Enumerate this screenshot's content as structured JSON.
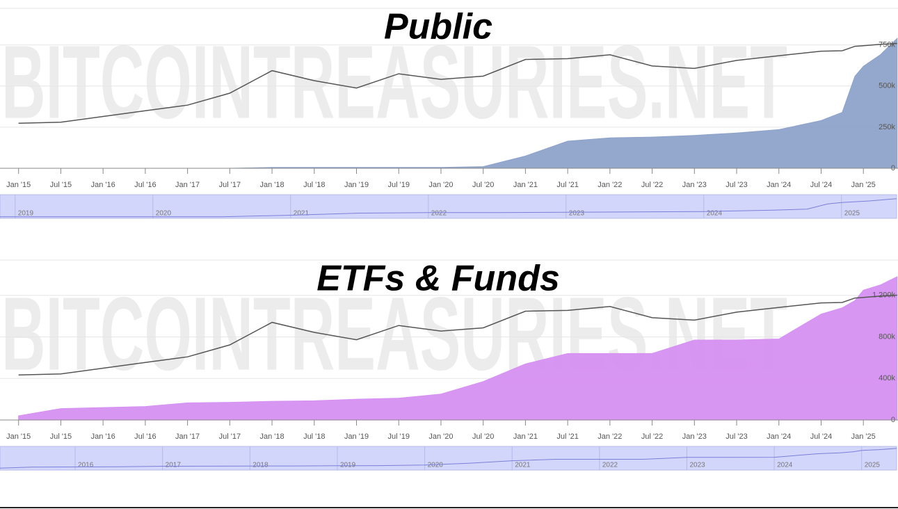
{
  "chart_data": [
    {
      "type": "area",
      "title": "Public",
      "watermark": "BITCOINTREASURIES.NET",
      "grid": true,
      "x": [
        2015,
        2015.5,
        2016,
        2016.5,
        2017,
        2017.5,
        2018,
        2018.5,
        2019,
        2019.5,
        2020,
        2020.5,
        2021,
        2021.5,
        2022,
        2022.5,
        2023,
        2023.5,
        2024,
        2024.5,
        2024.75,
        2024.9,
        2025,
        2025.2,
        2025.4
      ],
      "xlim": [
        2014.78,
        2025.41
      ],
      "xticks": [
        {
          "value": 2015,
          "label": "Jan '15"
        },
        {
          "value": 2015.5,
          "label": "Jul '15"
        },
        {
          "value": 2016,
          "label": "Jan '16"
        },
        {
          "value": 2016.5,
          "label": "Jul '16"
        },
        {
          "value": 2017,
          "label": "Jan '17"
        },
        {
          "value": 2017.5,
          "label": "Jul '17"
        },
        {
          "value": 2018,
          "label": "Jan '18"
        },
        {
          "value": 2018.5,
          "label": "Jul '18"
        },
        {
          "value": 2019,
          "label": "Jan '19"
        },
        {
          "value": 2019.5,
          "label": "Jul '19"
        },
        {
          "value": 2020,
          "label": "Jan '20"
        },
        {
          "value": 2020.5,
          "label": "Jul '20"
        },
        {
          "value": 2021,
          "label": "Jan '21"
        },
        {
          "value": 2021.5,
          "label": "Jul '21"
        },
        {
          "value": 2022,
          "label": "Jan '22"
        },
        {
          "value": 2022.5,
          "label": "Jul '22"
        },
        {
          "value": 2023,
          "label": "Jan '23"
        },
        {
          "value": 2023.5,
          "label": "Jul '23"
        },
        {
          "value": 2024,
          "label": "Jan '24"
        },
        {
          "value": 2024.5,
          "label": "Jul '24"
        },
        {
          "value": 2025,
          "label": "Jan '25"
        }
      ],
      "ylim": [
        0,
        960000
      ],
      "yticks": [
        0,
        {
          "value": 250000,
          "label": "250k"
        },
        {
          "value": 500000,
          "label": "500k"
        },
        {
          "value": 750000,
          "label": "750k"
        }
      ],
      "y2lim": [
        8,
        1400000
      ],
      "y2log": true,
      "series": [
        {
          "color": "#8ea2ca",
          "values": [
            0,
            0,
            0,
            0,
            0,
            0,
            5000,
            5000,
            5000,
            5000,
            5000,
            10000,
            75000,
            165000,
            185000,
            190000,
            200000,
            215000,
            235000,
            290000,
            340000,
            560000,
            620000,
            690000,
            790000
          ]
        },
        {
          "color": "#555555",
          "axis": "y2",
          "values": [
            250,
            270,
            420,
            650,
            1000,
            2500,
            14000,
            6500,
            3700,
            11000,
            7200,
            9200,
            33000,
            35000,
            47000,
            20000,
            16600,
            30500,
            44000,
            62000,
            64000,
            90000,
            94000,
            105000,
            112000
          ]
        }
      ],
      "navigator": {
        "xlim": [
          2018.89,
          2025.4
        ],
        "xticks": [
          2019,
          2020,
          2021,
          2022,
          2023,
          2024,
          2025
        ]
      }
    },
    {
      "type": "area",
      "title": "ETFs & Funds",
      "watermark": "BITCOINTREASURIES.NET",
      "grid": true,
      "x": [
        2015,
        2015.5,
        2016,
        2016.5,
        2017,
        2017.5,
        2018,
        2018.5,
        2019,
        2019.5,
        2020,
        2020.5,
        2021,
        2021.5,
        2022,
        2022.5,
        2023,
        2023.5,
        2024,
        2024.5,
        2024.75,
        2024.9,
        2025,
        2025.2,
        2025.4
      ],
      "xlim": [
        2014.78,
        2025.41
      ],
      "xticks": [
        {
          "value": 2015,
          "label": "Jan '15"
        },
        {
          "value": 2015.5,
          "label": "Jul '15"
        },
        {
          "value": 2016,
          "label": "Jan '16"
        },
        {
          "value": 2016.5,
          "label": "Jul '16"
        },
        {
          "value": 2017,
          "label": "Jan '17"
        },
        {
          "value": 2017.5,
          "label": "Jul '17"
        },
        {
          "value": 2018,
          "label": "Jan '18"
        },
        {
          "value": 2018.5,
          "label": "Jul '18"
        },
        {
          "value": 2019,
          "label": "Jan '19"
        },
        {
          "value": 2019.5,
          "label": "Jul '19"
        },
        {
          "value": 2020,
          "label": "Jan '20"
        },
        {
          "value": 2020.5,
          "label": "Jul '20"
        },
        {
          "value": 2021,
          "label": "Jan '21"
        },
        {
          "value": 2021.5,
          "label": "Jul '21"
        },
        {
          "value": 2022,
          "label": "Jan '22"
        },
        {
          "value": 2022.5,
          "label": "Jul '22"
        },
        {
          "value": 2023,
          "label": "Jan '23"
        },
        {
          "value": 2023.5,
          "label": "Jul '23"
        },
        {
          "value": 2024,
          "label": "Jan '24"
        },
        {
          "value": 2024.5,
          "label": "Jul '24"
        },
        {
          "value": 2025,
          "label": "Jan '25"
        }
      ],
      "ylim": [
        0,
        1520000
      ],
      "yticks": [
        0,
        {
          "value": 400000,
          "label": "400k"
        },
        {
          "value": 800000,
          "label": "800k"
        },
        {
          "value": 1200000,
          "label": "1 200k"
        }
      ],
      "y2lim": [
        8,
        1400000
      ],
      "y2log": true,
      "series": [
        {
          "color": "#d690f2",
          "values": [
            40000,
            110000,
            120000,
            130000,
            165000,
            170000,
            180000,
            185000,
            200000,
            210000,
            250000,
            370000,
            540000,
            640000,
            640000,
            640000,
            770000,
            770000,
            780000,
            1020000,
            1080000,
            1150000,
            1250000,
            1300000,
            1380000
          ]
        },
        {
          "color": "#555555",
          "axis": "y2",
          "values": [
            250,
            270,
            420,
            650,
            1000,
            2500,
            14000,
            6500,
            3700,
            11000,
            7200,
            9200,
            33000,
            35000,
            47000,
            20000,
            16600,
            30500,
            44000,
            62000,
            64000,
            90000,
            94000,
            105000,
            112000
          ]
        }
      ],
      "navigator": {
        "xlim": [
          2015.14,
          2025.4
        ],
        "xticks": [
          2016,
          2017,
          2018,
          2019,
          2020,
          2021,
          2022,
          2023,
          2024,
          2025
        ]
      }
    }
  ]
}
